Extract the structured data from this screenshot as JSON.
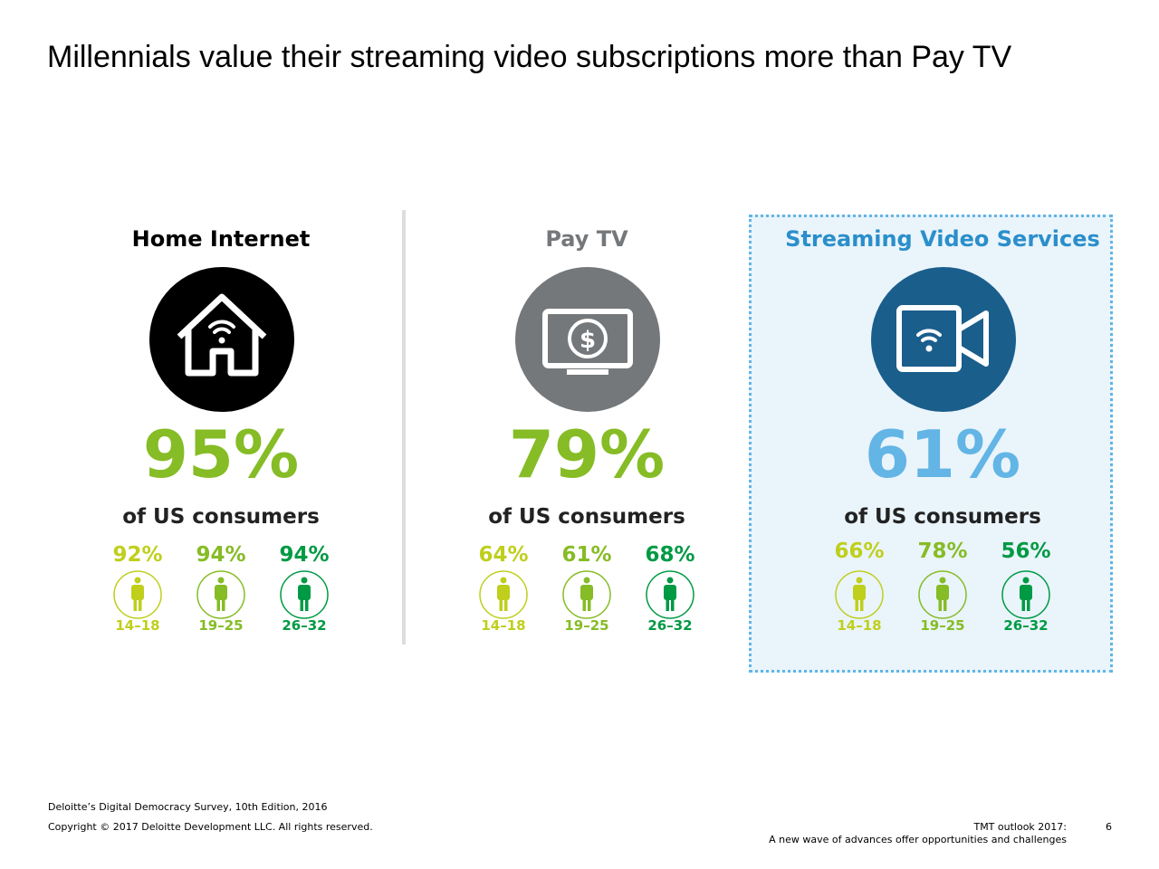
{
  "title": "Millennials value their streaming video subscriptions more than Pay TV",
  "panels": [
    {
      "heading": "Home Internet",
      "value": "95%",
      "subtitle": "of US consumers",
      "groups": [
        {
          "value": "92%",
          "label": "14–18"
        },
        {
          "value": "94%",
          "label": "19–25"
        },
        {
          "value": "94%",
          "label": "26–32"
        }
      ]
    },
    {
      "heading": "Pay TV",
      "value": "79%",
      "subtitle": "of US consumers",
      "groups": [
        {
          "value": "64%",
          "label": "14–18"
        },
        {
          "value": "61%",
          "label": "19–25"
        },
        {
          "value": "68%",
          "label": "26–32"
        }
      ]
    },
    {
      "heading": "Streaming Video Services",
      "value": "61%",
      "subtitle": "of US consumers",
      "groups": [
        {
          "value": "66%",
          "label": "14–18"
        },
        {
          "value": "78%",
          "label": "19–25"
        },
        {
          "value": "56%",
          "label": "26–32"
        }
      ]
    }
  ],
  "footer": {
    "source": "Deloitte’s Digital Democracy Survey, 10th Edition, 2016",
    "copyright": "Copyright © 2017 Deloitte Development LLC. All rights reserved.",
    "report_line1": "TMT outlook 2017:",
    "report_line2": "A new wave of advances offer opportunities and challenges",
    "page": "6"
  }
}
